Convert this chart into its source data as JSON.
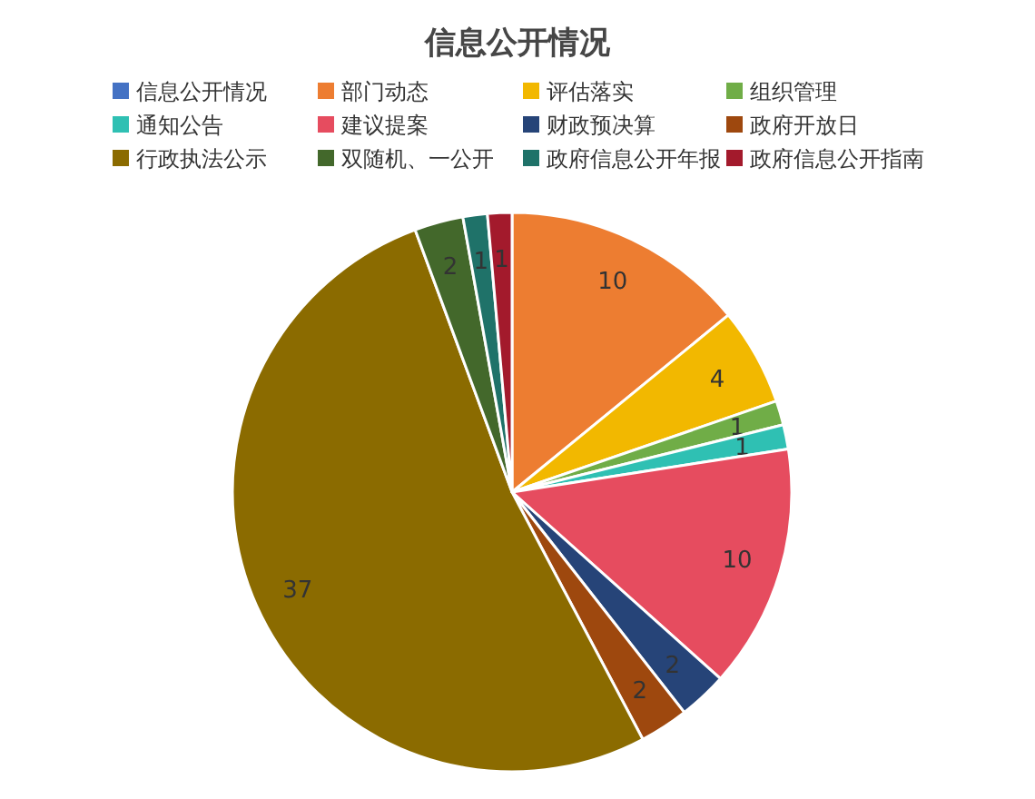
{
  "chart_data": {
    "type": "pie",
    "title": "信息公开情况",
    "categories": [
      "信息公开情况",
      "部门动态",
      "评估落实",
      "组织管理",
      "通知公告",
      "建议提案",
      "财政预决算",
      "政府开放日",
      "行政执法公示",
      "双随机、一公开",
      "政府信息公开年报",
      "政府信息公开指南"
    ],
    "values": [
      0,
      10,
      4,
      1,
      1,
      10,
      2,
      2,
      37,
      2,
      1,
      1
    ],
    "value_labels": [
      null,
      "10",
      "4",
      "1",
      "1",
      "10",
      "2",
      "2",
      "37",
      "2",
      "1",
      "1"
    ],
    "colors": [
      "#4472c4",
      "#ed7d31",
      "#f2b800",
      "#70ad47",
      "#2fc0b3",
      "#e64c5f",
      "#264478",
      "#9e480e",
      "#8b6b00",
      "#43682b",
      "#1f7269",
      "#a31a2c"
    ],
    "legend": "top"
  }
}
